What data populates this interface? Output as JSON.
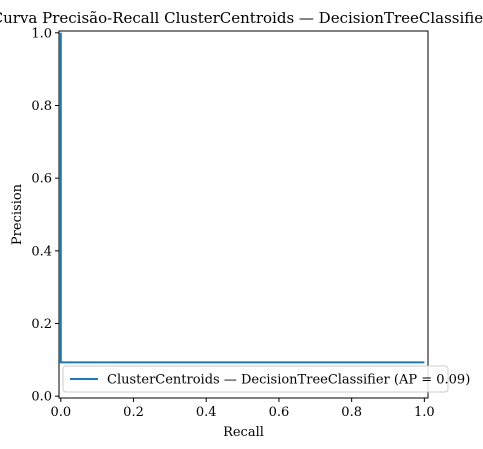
{
  "chart_data": {
    "type": "line",
    "title": "Curva Precisão-Recall ClusterCentroids — DecisionTreeClassifier",
    "xlabel": "Recall",
    "ylabel": "Precision",
    "xlim": [
      -0.005,
      1.01
    ],
    "ylim": [
      -0.005,
      1.005
    ],
    "xticks": [
      0.0,
      0.2,
      0.4,
      0.6,
      0.8,
      1.0
    ],
    "xtick_labels": [
      "0.0",
      "0.2",
      "0.4",
      "0.6",
      "0.8",
      "1.0"
    ],
    "yticks": [
      0.0,
      0.2,
      0.4,
      0.6,
      0.8,
      1.0
    ],
    "ytick_labels": [
      "0.0",
      "0.2",
      "0.4",
      "0.6",
      "0.8",
      "1.0"
    ],
    "grid": false,
    "legend_position": "lower-right",
    "series": [
      {
        "name": "ClusterCentroids — DecisionTreeClassifier (AP = 0.09)",
        "color": "#1f77b4",
        "x": [
          0.0,
          0.0,
          1.0
        ],
        "y": [
          1.0,
          0.093,
          0.093
        ]
      }
    ]
  }
}
